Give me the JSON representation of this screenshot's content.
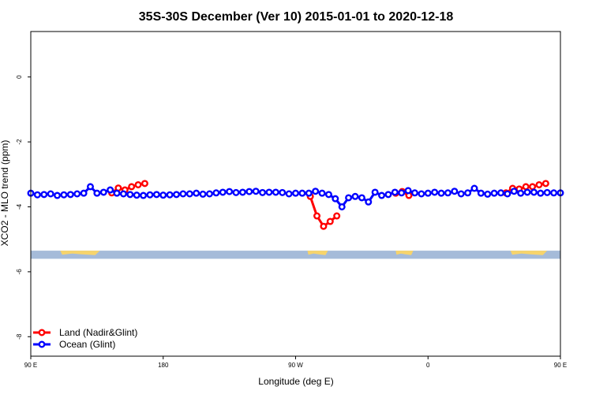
{
  "chart_data": {
    "type": "line",
    "title": "35S-30S December (Ver 10)   2015-01-01 to 2020-12-18",
    "xlabel": "Longitude (deg E)",
    "ylabel": "XCO2 - MLO trend (ppm)",
    "xlim": [
      90,
      450
    ],
    "ylim": [
      -8.6,
      1.4
    ],
    "x_ticks": [
      {
        "value": 90,
        "label": "90 E"
      },
      {
        "value": 180,
        "label": "180"
      },
      {
        "value": 270,
        "label": "90 W"
      },
      {
        "value": 360,
        "label": "0"
      },
      {
        "value": 450,
        "label": "90 E"
      },
      {
        "value": 540,
        "label": "180"
      }
    ],
    "y_ticks": [
      {
        "value": 0,
        "label": "0"
      },
      {
        "value": -2,
        "label": "-2"
      },
      {
        "value": -4,
        "label": "-4"
      },
      {
        "value": -6,
        "label": "-6"
      },
      {
        "value": -8,
        "label": "-8"
      }
    ],
    "legend": {
      "position": "bottom-left",
      "entries": [
        {
          "name": "Land (Nadir&Glint)",
          "color": "#ff0000"
        },
        {
          "name": "Ocean (Glint)",
          "color": "#0000ff"
        }
      ]
    },
    "colors": {
      "land": "#ff0000",
      "ocean": "#0000ff",
      "map_ocean": "#a5bbd9",
      "map_land": "#f7d46c"
    },
    "series": [
      {
        "name": "Land (Nadir&Glint)",
        "color": "#ff0000",
        "segments": [
          {
            "x": [
              145,
              149.5,
              154,
              158.5,
              163,
              167.5
            ],
            "y": [
              -3.57,
              -3.42,
              -3.48,
              -3.38,
              -3.32,
              -3.28
            ]
          },
          {
            "x": [
              280,
              284.5,
              289,
              293.5,
              298
            ],
            "y": [
              -3.68,
              -4.28,
              -4.6,
              -4.45,
              -4.28
            ]
          },
          {
            "x": [
              338,
              342.5,
              347
            ],
            "y": [
              -3.58,
              -3.53,
              -3.65
            ]
          },
          {
            "x": [
              413,
              417.5,
              422,
              426.5,
              431,
              435.5,
              440
            ],
            "y": [
              -3.57,
              -3.43,
              -3.45,
              -3.38,
              -3.38,
              -3.32,
              -3.28
            ]
          }
        ]
      },
      {
        "name": "Ocean (Glint)",
        "color": "#0000ff",
        "x": [
          90,
          94.5,
          99,
          103.5,
          108,
          112.5,
          117,
          121.5,
          126,
          130.5,
          135,
          139.5,
          144,
          148.5,
          153,
          157.5,
          162,
          166.5,
          171,
          175.5,
          180,
          184.5,
          189,
          193.5,
          198,
          202.5,
          207,
          211.5,
          216,
          220.5,
          225,
          229.5,
          234,
          238.5,
          243,
          247.5,
          252,
          256.5,
          261,
          265.5,
          270,
          274.5,
          279,
          283.5,
          288,
          292.5,
          297,
          301.5,
          306,
          310.5,
          315,
          319.5,
          324,
          328.5,
          333,
          337.5,
          342,
          346.5,
          351,
          355.5,
          360,
          364.5,
          369,
          373.5,
          378,
          382.5,
          387,
          391.5,
          396,
          400.5,
          405,
          409.5,
          414,
          418.5,
          423,
          427.5,
          432,
          436.5,
          441,
          445.5,
          450
        ],
        "y": [
          -3.58,
          -3.63,
          -3.62,
          -3.6,
          -3.65,
          -3.63,
          -3.62,
          -3.6,
          -3.58,
          -3.38,
          -3.58,
          -3.55,
          -3.48,
          -3.58,
          -3.6,
          -3.62,
          -3.64,
          -3.65,
          -3.63,
          -3.62,
          -3.64,
          -3.63,
          -3.62,
          -3.6,
          -3.6,
          -3.58,
          -3.61,
          -3.6,
          -3.57,
          -3.55,
          -3.53,
          -3.56,
          -3.55,
          -3.53,
          -3.52,
          -3.56,
          -3.55,
          -3.55,
          -3.56,
          -3.6,
          -3.58,
          -3.58,
          -3.58,
          -3.52,
          -3.58,
          -3.62,
          -3.75,
          -4.0,
          -3.72,
          -3.68,
          -3.72,
          -3.85,
          -3.55,
          -3.65,
          -3.62,
          -3.55,
          -3.57,
          -3.5,
          -3.57,
          -3.6,
          -3.58,
          -3.55,
          -3.58,
          -3.57,
          -3.52,
          -3.6,
          -3.57,
          -3.43,
          -3.58,
          -3.61,
          -3.58,
          -3.57,
          -3.6,
          -3.52,
          -3.58,
          -3.55,
          -3.55,
          -3.58,
          -3.56,
          -3.57,
          -3.57
        ]
      }
    ],
    "map_strip": {
      "y_range": [
        -5.35,
        -5.6
      ],
      "land_intervals": [
        [
          110,
          137
        ],
        [
          278,
          292
        ],
        [
          338,
          350
        ],
        [
          416,
          441
        ]
      ]
    }
  }
}
